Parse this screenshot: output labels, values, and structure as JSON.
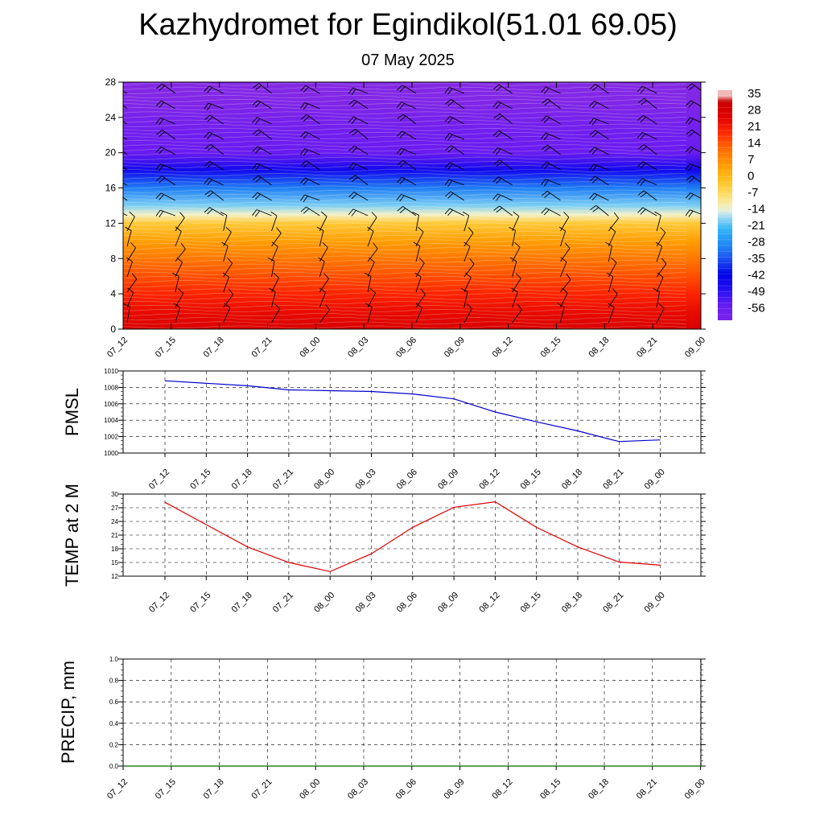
{
  "title": "Kazhydromet for Egindikol(51.01 69.05)",
  "subtitle": "07 May 2025",
  "chart_data": [
    {
      "type": "heatmap",
      "description_values": "temperature by height level (time-height section) with wind barbs",
      "x_ticks": [
        "07_12",
        "07_15",
        "07_18",
        "07_21",
        "08_00",
        "08_03",
        "08_06",
        "08_09",
        "08_12",
        "08_15",
        "08_18",
        "08_21",
        "09_00"
      ],
      "y_ticks": [
        0,
        4,
        8,
        12,
        16,
        20,
        24,
        28
      ],
      "ylim": [
        0,
        28
      ],
      "colorbar_labels": [
        35,
        28,
        21,
        14,
        7,
        0,
        -7,
        -14,
        -21,
        -28,
        -35,
        -42,
        -49,
        -56
      ],
      "temperature_profile": {
        "levels": [
          0,
          2,
          4,
          6,
          8,
          10,
          12,
          13,
          14,
          16,
          18,
          20,
          22,
          24,
          26,
          28
        ],
        "values": [
          30,
          26,
          22,
          17,
          12,
          6,
          -2,
          -12,
          -18,
          -30,
          -45,
          -56,
          -58,
          -62,
          -66,
          -68
        ]
      }
    },
    {
      "type": "line",
      "ylabel": "PMSL",
      "x": [
        "07_12",
        "07_15",
        "07_18",
        "07_21",
        "08_00",
        "08_03",
        "08_06",
        "08_09",
        "08_12",
        "08_15",
        "08_18",
        "08_21",
        "09_00"
      ],
      "ylim": [
        1000,
        1010
      ],
      "y_ticks": [
        1000,
        1002,
        1004,
        1006,
        1008,
        1010
      ],
      "series": [
        {
          "values": [
            1008.8,
            1008.5,
            1008.2,
            1007.7,
            1007.6,
            1007.5,
            1007.2,
            1006.6,
            1005.0,
            1003.8,
            1002.7,
            1001.4,
            1001.6
          ],
          "color": "#0000cc"
        }
      ]
    },
    {
      "type": "line",
      "ylabel": "TEMP at 2 M",
      "x": [
        "07_12",
        "07_15",
        "07_18",
        "07_21",
        "08_00",
        "08_03",
        "08_06",
        "08_09",
        "08_12",
        "08_15",
        "08_18",
        "08_21",
        "09_00"
      ],
      "ylim": [
        12,
        30
      ],
      "y_ticks": [
        12,
        15,
        18,
        21,
        24,
        27,
        30
      ],
      "series": [
        {
          "values": [
            28.2,
            23.3,
            18.4,
            15.0,
            13.0,
            16.9,
            22.7,
            27.1,
            28.3,
            22.7,
            18.4,
            15.1,
            14.4
          ],
          "color": "#dd0000"
        }
      ]
    },
    {
      "type": "line",
      "ylabel": "PRECIP, mm",
      "x": [
        "07_12",
        "07_15",
        "07_18",
        "07_21",
        "08_00",
        "08_03",
        "08_06",
        "08_09",
        "08_12",
        "08_15",
        "08_18",
        "08_21",
        "09_00"
      ],
      "ylim": [
        0,
        1
      ],
      "y_ticks": [
        "0.0",
        "0.2",
        "0.4",
        "0.6",
        "0.8",
        "1.0"
      ],
      "series": [
        {
          "values": [
            0,
            0,
            0,
            0,
            0,
            0,
            0,
            0,
            0,
            0,
            0,
            0,
            0
          ],
          "color": "#006600"
        }
      ]
    }
  ]
}
